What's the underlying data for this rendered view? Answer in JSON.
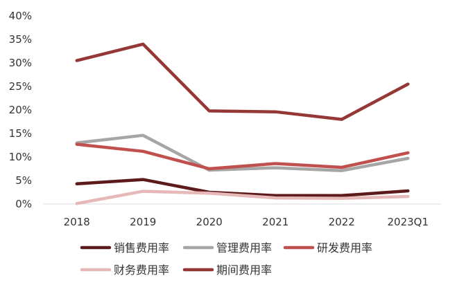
{
  "chart_data": {
    "type": "line",
    "title": "",
    "xlabel": "",
    "ylabel": "",
    "categories": [
      "2018",
      "2019",
      "2020",
      "2021",
      "2022",
      "2023Q1"
    ],
    "ylim": [
      0,
      40
    ],
    "yticks": [
      "0%",
      "5%",
      "10%",
      "15%",
      "20%",
      "25%",
      "30%",
      "35%",
      "40%"
    ],
    "grid": false,
    "legend_position": "bottom",
    "series": [
      {
        "name": "销售费用率",
        "color": "#5c1a1b",
        "values": [
          4.3,
          5.2,
          2.5,
          1.8,
          1.8,
          2.8
        ]
      },
      {
        "name": "管理费用率",
        "color": "#a6a6a6",
        "values": [
          13.0,
          14.6,
          7.2,
          7.7,
          7.1,
          9.7
        ]
      },
      {
        "name": "研发费用率",
        "color": "#c0504d",
        "values": [
          12.7,
          11.2,
          7.5,
          8.6,
          7.8,
          10.9
        ]
      },
      {
        "name": "财务费用率",
        "color": "#e6b9b8",
        "values": [
          0.1,
          2.7,
          2.3,
          1.3,
          1.2,
          1.6
        ]
      },
      {
        "name": "期间费用率",
        "color": "#953735",
        "values": [
          30.5,
          34.0,
          19.8,
          19.6,
          18.0,
          25.5
        ]
      }
    ]
  }
}
